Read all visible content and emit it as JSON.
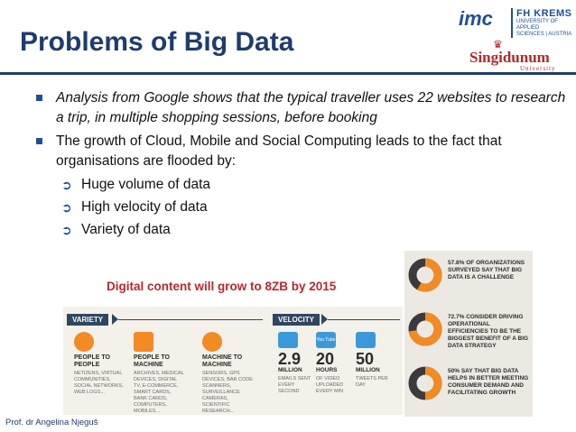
{
  "slide": {
    "title": "Problems of Big Data",
    "footer": "Prof. dr Angelina Njeguš",
    "caption": "Digital content will grow to 8ZB by 2015"
  },
  "logos": {
    "imc": "imc",
    "fh_name": "FH KREMS",
    "fh_sub1": "UNIVERSITY OF APPLIED",
    "fh_sub2": "SCIENCES | AUSTRIA",
    "sing": "Singidunum",
    "sing_sub": "University"
  },
  "bullets": [
    {
      "text": "Analysis from Google shows that the typical traveller uses 22 websites to research a trip, in multiple shopping sessions, before booking"
    },
    {
      "text": "The growth of Cloud, Mobile and Social Computing leads to the fact that organisations are flooded by:"
    }
  ],
  "sub_bullets": [
    {
      "text": "Huge volume of data"
    },
    {
      "text": "High velocity of data"
    },
    {
      "text": "Variety of data"
    }
  ],
  "infographic": {
    "variety_label": "VARIETY",
    "velocity_label": "VELOCITY",
    "variety": [
      {
        "title": "PEOPLE TO PEOPLE",
        "desc": "NETIZENS, VIRTUAL COMMUNITIES, SOCIAL NETWORKS, WEB LOGS..."
      },
      {
        "title": "PEOPLE TO MACHINE",
        "desc": "ARCHIVES, MEDICAL DEVICES, DIGITAL TV, E-COMMERCE, SMART CARDS, BANK CARDS, COMPUTERS, MOBILES..."
      },
      {
        "title": "MACHINE TO MACHINE",
        "desc": "SENSORS, GPS DEVICES, BAR CODE SCANNERS, SURVEILLANCE CAMERAS, SCIENTIFIC RESEARCH..."
      }
    ],
    "velocity": [
      {
        "num": "2.9",
        "unit": "MILLION",
        "desc": "EMAILS SENT EVERY SECOND"
      },
      {
        "num": "20",
        "unit": "HOURS",
        "desc": "OF VIDEO UPLOADED EVERY MIN"
      },
      {
        "num": "50",
        "unit": "MILLION",
        "desc": "TWEETS PER DAY"
      }
    ],
    "icon_labels": {
      "youtube": "You Tube"
    }
  },
  "stats": [
    {
      "fraction": 0.578,
      "text": "57.8% OF ORGANIZATIONS SURVEYED SAY THAT BIG DATA IS A CHALLENGE"
    },
    {
      "fraction": 0.727,
      "text": "72.7% CONSIDER DRIVING OPERATIONAL EFFICIENCIES TO BE THE BIGGEST BENEFIT OF A BIG DATA STRATEGY"
    },
    {
      "fraction": 0.5,
      "text": "50% SAY THAT BIG DATA HELPS IN BETTER MEETING CONSUMER DEMAND AND FACILITATING GROWTH"
    }
  ],
  "colors": {
    "accent": "#f28b24",
    "navy": "#1f3c6e",
    "red": "#b8282e"
  }
}
